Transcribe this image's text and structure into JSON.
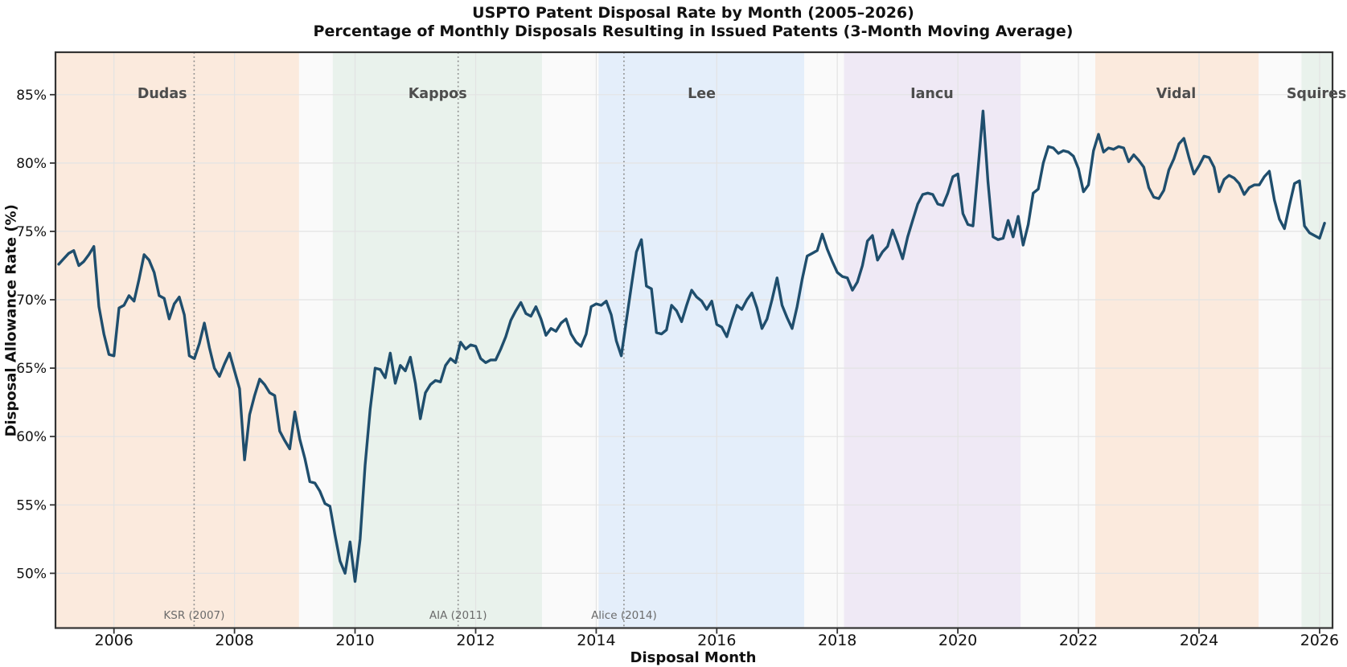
{
  "title": "USPTO Patent Disposal Rate by Month (2005–2026)",
  "subtitle": "Percentage of Monthly Disposals Resulting in Issued Patents (3-Month Moving Average)",
  "chart_data": {
    "type": "line",
    "title": "USPTO Patent Disposal Rate by Month (2005–2026)",
    "subtitle": "Percentage of Monthly Disposals Resulting in Issued Patents (3-Month Moving Average)",
    "xlabel": "Disposal Month",
    "ylabel": "Disposal Allowance Rate (%)",
    "xlim": [
      2005.03,
      2026.215
    ],
    "ylim": [
      46.0,
      88.1
    ],
    "grid": true,
    "x_ticks": [
      2006,
      2008,
      2010,
      2012,
      2014,
      2016,
      2018,
      2020,
      2022,
      2024,
      2026
    ],
    "y_ticks": [
      {
        "value": 50,
        "label": "50%"
      },
      {
        "value": 55,
        "label": "55%"
      },
      {
        "value": 60,
        "label": "60%"
      },
      {
        "value": 65,
        "label": "65%"
      },
      {
        "value": 70,
        "label": "70%"
      },
      {
        "value": 75,
        "label": "75%"
      },
      {
        "value": 80,
        "label": "80%"
      },
      {
        "value": 85,
        "label": "85%"
      }
    ],
    "series": [
      {
        "name": "allowance_rate_3mo_ma",
        "start_year": 2005,
        "start_month": 2,
        "values": [
          72.6,
          73.0,
          73.4,
          73.6,
          72.5,
          72.8,
          73.3,
          73.9,
          69.5,
          67.5,
          66.0,
          65.9,
          69.4,
          69.6,
          70.3,
          69.9,
          71.5,
          73.3,
          72.9,
          72.0,
          70.3,
          70.1,
          68.6,
          69.7,
          70.2,
          68.9,
          65.9,
          65.7,
          66.8,
          68.3,
          66.5,
          65.0,
          64.4,
          65.3,
          66.1,
          64.8,
          63.5,
          58.3,
          61.6,
          63.0,
          64.2,
          63.8,
          63.2,
          63.0,
          60.4,
          59.7,
          59.1,
          61.8,
          59.8,
          58.4,
          56.7,
          56.6,
          56.0,
          55.1,
          54.9,
          52.8,
          50.9,
          50.0,
          52.3,
          49.4,
          52.5,
          57.9,
          62.0,
          65.0,
          64.9,
          64.3,
          66.1,
          63.9,
          65.2,
          64.8,
          65.8,
          63.9,
          61.3,
          63.2,
          63.8,
          64.1,
          64.0,
          65.2,
          65.7,
          65.4,
          66.9,
          66.4,
          66.7,
          66.6,
          65.7,
          65.4,
          65.6,
          65.6,
          66.4,
          67.3,
          68.5,
          69.2,
          69.8,
          69.0,
          68.8,
          69.5,
          68.6,
          67.4,
          67.9,
          67.7,
          68.3,
          68.6,
          67.5,
          66.9,
          66.6,
          67.5,
          69.5,
          69.7,
          69.6,
          69.9,
          68.9,
          67.0,
          65.9,
          68.5,
          71.0,
          73.5,
          74.4,
          71.0,
          70.8,
          67.6,
          67.5,
          67.8,
          69.6,
          69.2,
          68.4,
          69.6,
          70.7,
          70.2,
          69.9,
          69.3,
          69.9,
          68.2,
          68.0,
          67.3,
          68.5,
          69.6,
          69.3,
          70.0,
          70.5,
          69.4,
          67.9,
          68.6,
          70.0,
          71.6,
          69.6,
          68.7,
          67.9,
          69.5,
          71.5,
          73.2,
          73.4,
          73.6,
          74.8,
          73.7,
          72.8,
          72.0,
          71.7,
          71.6,
          70.7,
          71.3,
          72.5,
          74.3,
          74.7,
          72.9,
          73.5,
          73.9,
          75.1,
          74.1,
          73.0,
          74.6,
          75.8,
          77.0,
          77.7,
          77.8,
          77.7,
          77.0,
          76.9,
          77.8,
          79.0,
          79.2,
          76.3,
          75.5,
          75.4,
          79.5,
          83.8,
          78.6,
          74.6,
          74.4,
          74.5,
          75.8,
          74.6,
          76.1,
          74.0,
          75.5,
          77.8,
          78.1,
          80.0,
          81.2,
          81.1,
          80.7,
          80.9,
          80.8,
          80.5,
          79.6,
          77.9,
          78.4,
          80.9,
          82.1,
          80.8,
          81.1,
          81.0,
          81.2,
          81.1,
          80.1,
          80.6,
          80.2,
          79.7,
          78.2,
          77.5,
          77.4,
          78.0,
          79.5,
          80.3,
          81.4,
          81.8,
          80.4,
          79.2,
          79.8,
          80.5,
          80.4,
          79.7,
          77.9,
          78.8,
          79.1,
          78.9,
          78.5,
          77.7,
          78.2,
          78.4,
          78.4,
          79.0,
          79.4,
          77.3,
          75.9,
          75.2,
          76.9,
          78.5,
          78.7,
          75.4,
          74.9,
          74.7,
          74.5,
          75.6
        ]
      }
    ],
    "director_eras": [
      {
        "label": "Dudas",
        "start": 2005.03,
        "end": 2009.07,
        "label_x": 2006.8,
        "color": "#fbeadd"
      },
      {
        "label": "Kappos",
        "start": 2009.63,
        "end": 2013.1,
        "label_x": 2011.37,
        "color": "#e9f2ec"
      },
      {
        "label": "Lee",
        "start": 2014.04,
        "end": 2017.45,
        "label_x": 2015.75,
        "color": "#e4eefa"
      },
      {
        "label": "Iancu",
        "start": 2018.11,
        "end": 2021.04,
        "label_x": 2019.57,
        "color": "#efe9f5"
      },
      {
        "label": "Vidal",
        "start": 2022.28,
        "end": 2024.99,
        "label_x": 2023.62,
        "color": "#fbeadd"
      },
      {
        "label": "Squires",
        "start": 2025.7,
        "end": 2026.215,
        "label_x": 2025.95,
        "color": "#e9f2ec"
      }
    ],
    "events": [
      {
        "label": "KSR (2007)",
        "x": 2007.33
      },
      {
        "label": "AIA (2011)",
        "x": 2011.71
      },
      {
        "label": "Alice (2014)",
        "x": 2014.46
      }
    ],
    "colors": {
      "line": "#1f4e6d",
      "plot_background": "#fafafa",
      "grid": "#e3e3e3",
      "frame": "#333333",
      "event_line": "#8c8c8c",
      "event_label": "#6b6b6b",
      "era_label": "#4d4d4d",
      "tick_label": "#111111"
    },
    "legend": null
  }
}
